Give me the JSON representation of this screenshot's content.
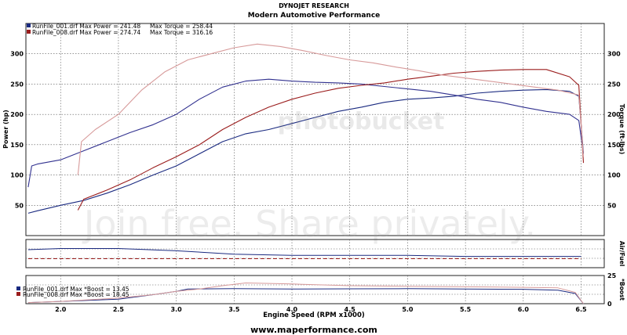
{
  "header": {
    "title": "DYNOJET RESEARCH",
    "subtitle": "Modern Automotive Performance"
  },
  "footer": {
    "website": "www.maperformance.com"
  },
  "watermark": {
    "logo_text": "photobucket",
    "tagline": "Join free. Share privately."
  },
  "colors": {
    "run1": "#1a2a80",
    "run2": "#9a1c1c",
    "run1_torque": "#31318f",
    "run2_torque": "#d79a9a",
    "grid": "#555555",
    "panel_bg": "#ffffff"
  },
  "chart_data": [
    {
      "type": "line",
      "panel": "main",
      "legend": [
        {
          "run": "RunFile_001.drf",
          "text": "RunFile_001.drf Max Power = 241.48     Max Torque = 258.44"
        },
        {
          "run": "RunFile_008.drf",
          "text": "RunFile_008.drf Max Power = 274.74     Max Torque = 316.16"
        }
      ],
      "ylabel_left": "Power (hp)",
      "ylabel_right": "Torque (ft-lbs)",
      "xlim": [
        1.7,
        6.7
      ],
      "ylim": [
        0,
        350
      ],
      "yticks": [
        50,
        100,
        150,
        200,
        250,
        300
      ],
      "grid": true,
      "series": [
        {
          "name": "RunFile_001.drf",
          "measure": "Power",
          "x": [
            1.72,
            1.8,
            2.0,
            2.2,
            2.4,
            2.6,
            2.8,
            3.0,
            3.2,
            3.4,
            3.6,
            3.8,
            4.0,
            4.2,
            4.4,
            4.6,
            4.8,
            5.0,
            5.2,
            5.4,
            5.6,
            5.8,
            6.0,
            6.2,
            6.4,
            6.48,
            6.52
          ],
          "y": [
            37,
            41,
            50,
            58,
            70,
            84,
            100,
            115,
            135,
            155,
            168,
            175,
            185,
            195,
            205,
            212,
            220,
            225,
            227,
            230,
            235,
            238,
            240,
            241,
            238,
            230,
            135
          ]
        },
        {
          "name": "RunFile_001.drf",
          "measure": "Torque",
          "x": [
            1.72,
            1.75,
            1.8,
            2.0,
            2.2,
            2.4,
            2.6,
            2.8,
            3.0,
            3.2,
            3.4,
            3.6,
            3.8,
            4.0,
            4.2,
            4.4,
            4.6,
            4.8,
            5.0,
            5.2,
            5.4,
            5.6,
            5.8,
            6.0,
            6.2,
            6.4,
            6.48,
            6.52
          ],
          "y": [
            80,
            115,
            118,
            125,
            140,
            155,
            170,
            183,
            200,
            225,
            245,
            255,
            258,
            255,
            253,
            252,
            250,
            246,
            242,
            238,
            232,
            225,
            220,
            212,
            205,
            200,
            190,
            135
          ]
        },
        {
          "name": "RunFile_008.drf",
          "measure": "Power",
          "x": [
            2.15,
            2.2,
            2.4,
            2.6,
            2.8,
            3.0,
            3.2,
            3.4,
            3.6,
            3.8,
            4.0,
            4.2,
            4.4,
            4.6,
            4.8,
            5.0,
            5.2,
            5.4,
            5.6,
            5.8,
            6.0,
            6.2,
            6.4,
            6.48,
            6.52
          ],
          "y": [
            42,
            60,
            75,
            92,
            112,
            130,
            150,
            175,
            195,
            212,
            225,
            235,
            243,
            248,
            252,
            258,
            263,
            268,
            271,
            273,
            274,
            274,
            262,
            248,
            120
          ]
        },
        {
          "name": "RunFile_008.drf",
          "measure": "Torque",
          "x": [
            2.15,
            2.18,
            2.3,
            2.5,
            2.7,
            2.9,
            3.1,
            3.3,
            3.5,
            3.7,
            3.9,
            4.1,
            4.3,
            4.5,
            4.7,
            4.9,
            5.1,
            5.3,
            5.5,
            5.7,
            5.9,
            6.1,
            6.3,
            6.48,
            6.52
          ],
          "y": [
            100,
            155,
            175,
            200,
            240,
            270,
            290,
            300,
            310,
            316,
            312,
            305,
            297,
            290,
            285,
            278,
            272,
            265,
            260,
            255,
            250,
            245,
            240,
            232,
            130
          ]
        }
      ]
    },
    {
      "type": "line",
      "panel": "air_fuel",
      "ylabel_right": "Air/Fuel",
      "xlim": [
        1.7,
        6.7
      ],
      "series": [
        {
          "name": "RunFile_001.drf",
          "x": [
            1.72,
            2.0,
            2.5,
            3.0,
            3.5,
            4.0,
            4.5,
            5.0,
            5.5,
            6.0,
            6.5
          ],
          "y": [
            12.6,
            12.7,
            12.7,
            12.5,
            12.2,
            12.1,
            12.1,
            12.1,
            12.0,
            12.0,
            12.0
          ]
        },
        {
          "name": "RunFile_008.drf",
          "x": [
            1.72,
            2.0,
            2.5,
            3.0,
            3.5,
            4.0,
            4.5,
            5.0,
            5.5,
            6.0,
            6.5
          ],
          "y": [
            11.8,
            11.8,
            11.8,
            11.8,
            11.8,
            11.8,
            11.8,
            11.8,
            11.8,
            11.8,
            11.8
          ]
        }
      ]
    },
    {
      "type": "line",
      "panel": "boost",
      "legend": [
        {
          "run": "RunFile_001.drf",
          "text": "RunFile_001.drf Max *Boost = 13.45"
        },
        {
          "run": "RunFile_008.drf",
          "text": "RunFile_008.drf Max *Boost = 18.45"
        }
      ],
      "ylabel_right": "*Boost",
      "xlabel": "Engine Speed (RPM x1000)",
      "xlim": [
        1.7,
        6.7
      ],
      "ylim": [
        0,
        25
      ],
      "yticks": [
        0,
        25
      ],
      "xticks": [
        "2.0",
        "2.5",
        "3.0",
        "3.5",
        "4.0",
        "4.5",
        "5.0",
        "5.5",
        "6.0",
        "6.5"
      ],
      "series": [
        {
          "name": "RunFile_001.drf",
          "x": [
            1.72,
            2.0,
            2.5,
            2.8,
            3.0,
            3.1,
            3.3,
            3.5,
            4.0,
            4.5,
            5.0,
            5.5,
            6.0,
            6.3,
            6.45,
            6.52
          ],
          "y": [
            1,
            2,
            4,
            8,
            11,
            13,
            13.2,
            13.3,
            13,
            13.2,
            13.3,
            13,
            12.8,
            12,
            9,
            0
          ]
        },
        {
          "name": "RunFile_008.drf",
          "x": [
            1.72,
            2.0,
            2.5,
            2.8,
            3.0,
            3.2,
            3.4,
            3.6,
            3.8,
            4.0,
            4.5,
            5.0,
            5.5,
            6.0,
            6.3,
            6.45,
            6.52
          ],
          "y": [
            1,
            2,
            5,
            8,
            11,
            13,
            16,
            18.4,
            18,
            17.5,
            16,
            15.5,
            15,
            14.5,
            14,
            10,
            0
          ]
        }
      ]
    }
  ]
}
